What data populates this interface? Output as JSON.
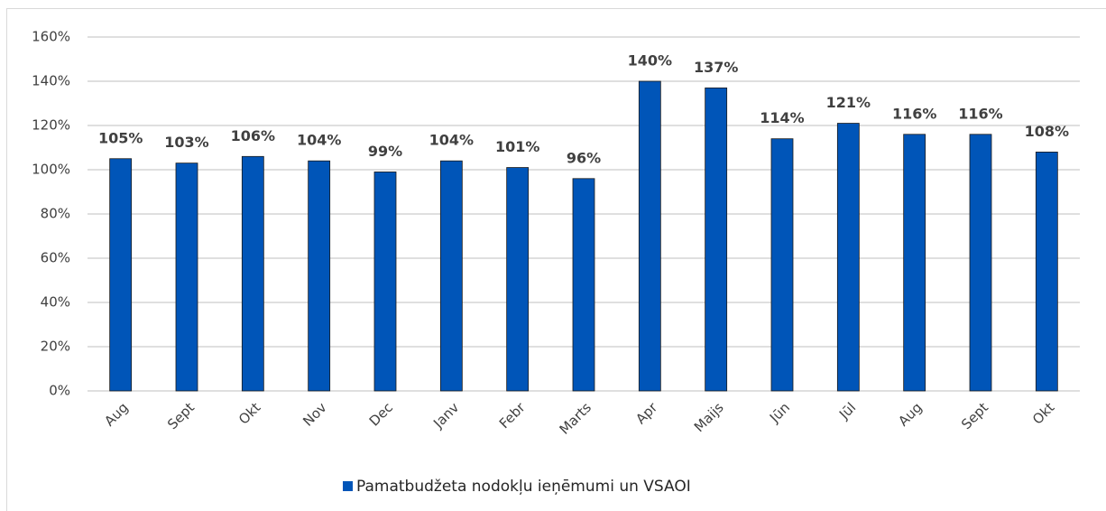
{
  "chart_data": {
    "type": "bar",
    "categories": [
      "Aug",
      "Sept",
      "Okt",
      "Nov",
      "Dec",
      "Janv",
      "Febr",
      "Marts",
      "Apr",
      "Maijs",
      "Jūn",
      "Jūl",
      "Aug",
      "Sept",
      "Okt"
    ],
    "series": [
      {
        "name": "Pamatbudžeta nodokļu ieņēmumi un VSAOI",
        "color": "#0055b8",
        "values": [
          105,
          103,
          106,
          104,
          99,
          104,
          101,
          96,
          140,
          137,
          114,
          121,
          116,
          116,
          108
        ],
        "value_labels": [
          "105%",
          "103%",
          "106%",
          "104%",
          "99%",
          "104%",
          "101%",
          "96%",
          "140%",
          "137%",
          "114%",
          "121%",
          "116%",
          "116%",
          "108%"
        ]
      }
    ],
    "ylim": [
      0,
      160
    ],
    "yticks": [
      {
        "value": 0,
        "label": "0%"
      },
      {
        "value": 20,
        "label": "20%"
      },
      {
        "value": 40,
        "label": "40%"
      },
      {
        "value": 60,
        "label": "60%"
      },
      {
        "value": 80,
        "label": "80%"
      },
      {
        "value": 100,
        "label": "100%"
      },
      {
        "value": 120,
        "label": "120%"
      },
      {
        "value": 140,
        "label": "140%"
      },
      {
        "value": 160,
        "label": "160%"
      }
    ],
    "grid": true,
    "legend": "bottom"
  }
}
